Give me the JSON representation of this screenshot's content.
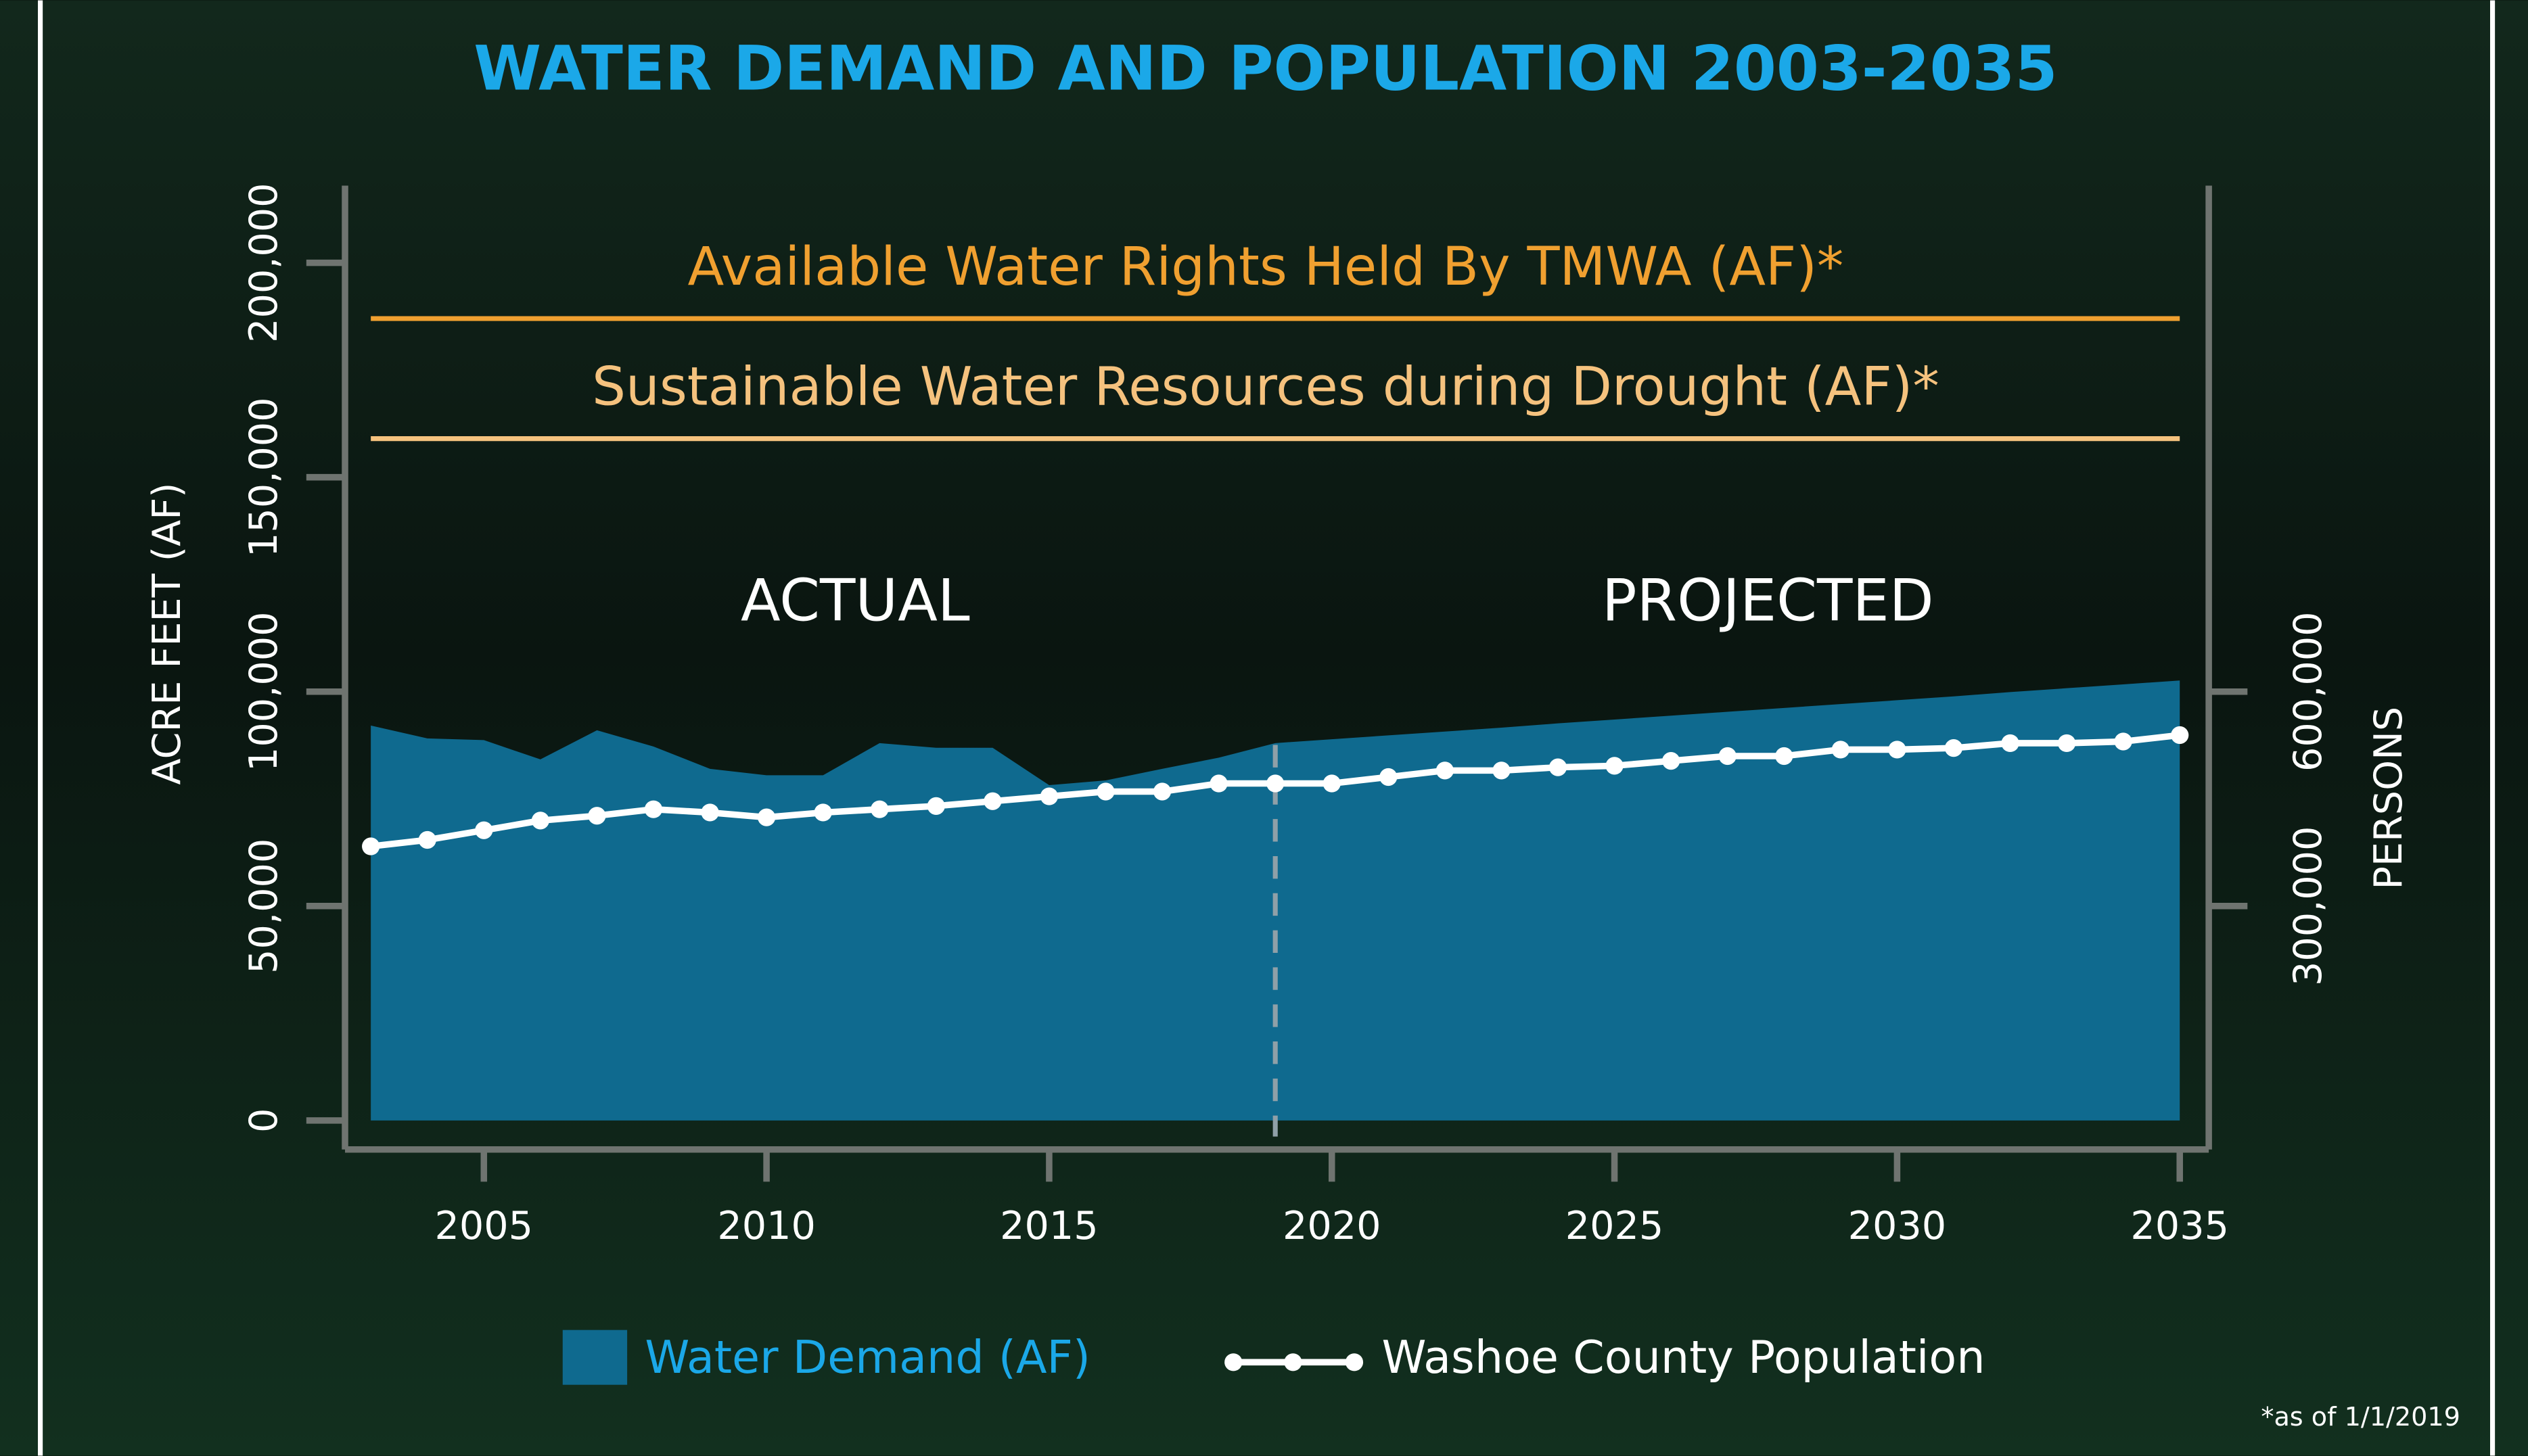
{
  "chart_data": {
    "type": "area",
    "title": "WATER DEMAND AND POPULATION 2003-2035",
    "x": [
      2003,
      2004,
      2005,
      2006,
      2007,
      2008,
      2009,
      2010,
      2011,
      2012,
      2013,
      2014,
      2015,
      2016,
      2017,
      2018,
      2019,
      2020,
      2021,
      2022,
      2023,
      2024,
      2025,
      2026,
      2027,
      2028,
      2029,
      2030,
      2031,
      2032,
      2033,
      2034,
      2035
    ],
    "series": [
      {
        "name": "Water Demand (AF)",
        "type": "area",
        "color": "#0f6a8f",
        "values": [
          92100,
          89100,
          88700,
          84200,
          91000,
          87200,
          82000,
          80500,
          80500,
          88000,
          86900,
          86900,
          78200,
          79300,
          82000,
          84600,
          88000,
          88900,
          89800,
          90700,
          91600,
          92600,
          93500,
          94400,
          95300,
          96200,
          97100,
          98000,
          98900,
          99900,
          100800,
          101700,
          102600
        ]
      },
      {
        "name": "Washoe County Population",
        "type": "line",
        "axis": "y2",
        "color": "#ffffff",
        "values": [
          383500,
          392500,
          406000,
          419600,
          426400,
          435400,
          430900,
          424100,
          430900,
          435400,
          440000,
          446700,
          453500,
          460200,
          460200,
          471500,
          471500,
          471500,
          480500,
          489600,
          489600,
          494100,
          496300,
          503100,
          509900,
          509900,
          518900,
          518900,
          521100,
          527900,
          527900,
          530200,
          539200
        ]
      }
    ],
    "reference_lines": [
      {
        "label": "Available Water Rights Held By TMWA (AF)*",
        "value": 187000,
        "color": "#f0a030"
      },
      {
        "label": "Sustainable Water Resources during Drought (AF)*",
        "value": 159000,
        "color": "#f5c27e"
      }
    ],
    "annotations": [
      "ACTUAL",
      "PROJECTED"
    ],
    "divider_x": 2019,
    "xlim": [
      2003,
      2035
    ],
    "xticks": [
      2005,
      2010,
      2015,
      2020,
      2025,
      2030,
      2035
    ],
    "ylim": [
      0,
      218000
    ],
    "yticks": [
      0,
      {
        "value": 50000,
        "label": "50,000"
      },
      {
        "value": 100000,
        "label": "100,000"
      },
      {
        "value": 150000,
        "label": "150,000"
      },
      {
        "value": 200000,
        "label": "200,000"
      }
    ],
    "y2lim": [
      0,
      1308000
    ],
    "y2ticks": [
      {
        "value": 300000,
        "label": "300,000"
      },
      {
        "value": 600000,
        "label": "600,000"
      }
    ],
    "ylabel": "ACRE FEET (AF)",
    "y2label": "PERSONS",
    "footnote": "*as of 1/1/2019"
  }
}
